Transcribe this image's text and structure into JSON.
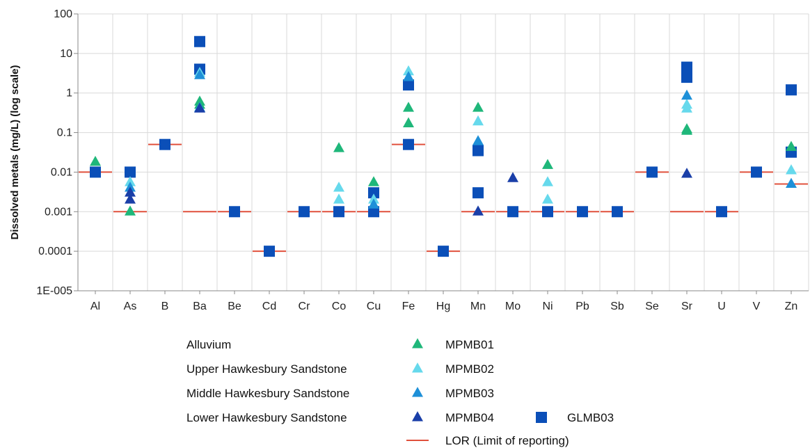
{
  "chart_data": {
    "type": "scatter",
    "ylabel": "Dissolved metals (mg/L) (log scale)",
    "y_scale": "log",
    "ylim": [
      1e-05,
      100
    ],
    "y_ticks": [
      "1E-005",
      "0.0001",
      "0.001",
      "0.01",
      "0.1",
      "1",
      "10",
      "100"
    ],
    "categories": [
      "Al",
      "As",
      "B",
      "Ba",
      "Be",
      "Cd",
      "Cr",
      "Co",
      "Cu",
      "Fe",
      "Hg",
      "Mn",
      "Mo",
      "Ni",
      "Pb",
      "Sb",
      "Se",
      "Sr",
      "U",
      "V",
      "Zn"
    ],
    "grid": true,
    "legend": {
      "aquifers": [
        "Alluvium",
        "Upper Hawkesbury Sandstone",
        "Middle Hawkesbury Sandstone",
        "Lower Hawkesbury Sandstone"
      ],
      "position": "bottom"
    },
    "series": [
      {
        "name": "MPMB01",
        "marker": "triangle",
        "color": "#1fb77a",
        "points": [
          [
            "Al",
            0.018
          ],
          [
            "As",
            0.001
          ],
          [
            "Ba",
            0.6
          ],
          [
            "Ba",
            0.5
          ],
          [
            "Co",
            0.04
          ],
          [
            "Cu",
            0.0055
          ],
          [
            "Fe",
            0.42
          ],
          [
            "Fe",
            0.17
          ],
          [
            "Mn",
            0.42
          ],
          [
            "Ni",
            0.015
          ],
          [
            "Sr",
            0.12
          ],
          [
            "Sr",
            0.11
          ],
          [
            "Zn",
            0.043
          ]
        ]
      },
      {
        "name": "MPMB02",
        "marker": "triangle",
        "color": "#66d9ec",
        "points": [
          [
            "As",
            0.0055
          ],
          [
            "Ba",
            3.2
          ],
          [
            "Co",
            0.004
          ],
          [
            "Co",
            0.002
          ],
          [
            "Cu",
            0.002
          ],
          [
            "Fe",
            3.5
          ],
          [
            "Mn",
            0.19
          ],
          [
            "Ni",
            0.0055
          ],
          [
            "Ni",
            0.002
          ],
          [
            "Sr",
            0.4
          ],
          [
            "Sr",
            0.5
          ],
          [
            "Zn",
            0.011
          ]
        ]
      },
      {
        "name": "MPMB03",
        "marker": "triangle",
        "color": "#1e90d8",
        "points": [
          [
            "As",
            0.004
          ],
          [
            "Ba",
            2.8
          ],
          [
            "Ba",
            0.42
          ],
          [
            "Cu",
            0.0015
          ],
          [
            "Fe",
            2.5
          ],
          [
            "Mn",
            0.06
          ],
          [
            "Sr",
            0.85
          ],
          [
            "Zn",
            0.005
          ]
        ]
      },
      {
        "name": "MPMB04",
        "marker": "triangle",
        "color": "#1a3fa8",
        "points": [
          [
            "As",
            0.003
          ],
          [
            "As",
            0.002
          ],
          [
            "Ba",
            0.4
          ],
          [
            "Mn",
            0.001
          ],
          [
            "Mo",
            0.007
          ],
          [
            "Sr",
            0.009
          ]
        ]
      },
      {
        "name": "GLMB03",
        "marker": "square",
        "color": "#0b4fb8",
        "points": [
          [
            "Al",
            0.01
          ],
          [
            "As",
            0.01
          ],
          [
            "B",
            0.05
          ],
          [
            "Ba",
            20
          ],
          [
            "Ba",
            4
          ],
          [
            "Be",
            0.001
          ],
          [
            "Cd",
            0.0001
          ],
          [
            "Cr",
            0.001
          ],
          [
            "Co",
            0.001
          ],
          [
            "Cu",
            0.003
          ],
          [
            "Cu",
            0.001
          ],
          [
            "Fe",
            1.6
          ],
          [
            "Fe",
            0.05
          ],
          [
            "Hg",
            0.0001
          ],
          [
            "Mn",
            0.035
          ],
          [
            "Mn",
            0.003
          ],
          [
            "Mo",
            0.001
          ],
          [
            "Ni",
            0.001
          ],
          [
            "Pb",
            0.001
          ],
          [
            "Sb",
            0.001
          ],
          [
            "Se",
            0.01
          ],
          [
            "Sr",
            4.5
          ],
          [
            "Sr",
            2.5
          ],
          [
            "U",
            0.001
          ],
          [
            "V",
            0.01
          ],
          [
            "Zn",
            1.2
          ],
          [
            "Zn",
            0.032
          ]
        ]
      },
      {
        "name": "LOR (Limit of reporting)",
        "marker": "line",
        "color": "#e0503c",
        "points": [
          [
            "Al",
            0.01
          ],
          [
            "As",
            0.001
          ],
          [
            "B",
            0.05
          ],
          [
            "Ba",
            0.001
          ],
          [
            "Be",
            0.001
          ],
          [
            "Cd",
            0.0001
          ],
          [
            "Cr",
            0.001
          ],
          [
            "Co",
            0.001
          ],
          [
            "Cu",
            0.001
          ],
          [
            "Fe",
            0.05
          ],
          [
            "Hg",
            0.0001
          ],
          [
            "Mn",
            0.001
          ],
          [
            "Mo",
            0.001
          ],
          [
            "Ni",
            0.001
          ],
          [
            "Pb",
            0.001
          ],
          [
            "Sb",
            0.001
          ],
          [
            "Se",
            0.01
          ],
          [
            "Sr",
            0.001
          ],
          [
            "U",
            0.001
          ],
          [
            "V",
            0.01
          ],
          [
            "Zn",
            0.005
          ]
        ]
      }
    ]
  }
}
